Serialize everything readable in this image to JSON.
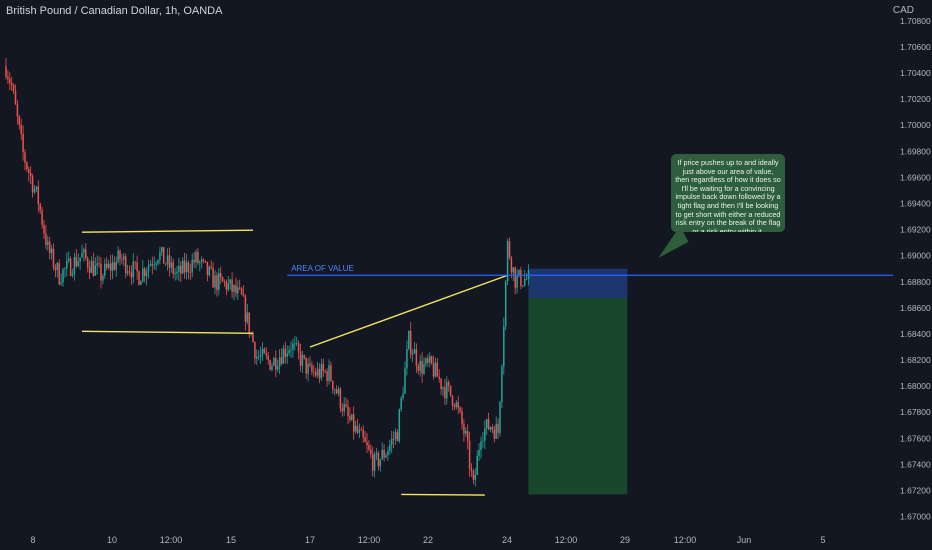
{
  "header": {
    "title": "British Pound / Canadian Dollar, 1h, OANDA",
    "currency": "CAD"
  },
  "annotation": {
    "text": "If price pushes up to and ideally just above our area of value, then regardless of how it does so I'll be waiting for a convincing impulse back down followed by a tight flag and then I'll be looking to get short with either a reduced risk entry on the break of the flag or a risk entry within it."
  },
  "colors": {
    "background": "#131722",
    "bull": "#26a69a",
    "bear": "#ef5350",
    "trendline": "#f5e663",
    "area_of_value": "#2962ff",
    "stop_zone": "#1e3a78",
    "target_zone": "#1b4d2e",
    "axis_text": "#b2b5be"
  },
  "chart_data": {
    "type": "candlestick",
    "title": "British Pound / Canadian Dollar, 1h, OANDA",
    "y_axis": {
      "label": "CAD",
      "ticks": [
        "1.70800",
        "1.70600",
        "1.70400",
        "1.70200",
        "1.70000",
        "1.69800",
        "1.69600",
        "1.69400",
        "1.69200",
        "1.69000",
        "1.68800",
        "1.68600",
        "1.68400",
        "1.68200",
        "1.68000",
        "1.67800",
        "1.67600",
        "1.67400",
        "1.67200",
        "1.67000"
      ],
      "range": [
        1.6692,
        1.7096
      ]
    },
    "x_axis": {
      "ticks": [
        "8",
        "10",
        "12:00",
        "15",
        "17",
        "12:00",
        "22",
        "24",
        "12:00",
        "29",
        "12:00",
        "Jun",
        "5"
      ]
    },
    "price_path": [
      [
        0,
        1.7045
      ],
      [
        3,
        1.703
      ],
      [
        9,
        1.6978
      ],
      [
        17,
        1.6942
      ],
      [
        22,
        1.6905
      ],
      [
        28,
        1.6885
      ],
      [
        40,
        1.69
      ],
      [
        50,
        1.6885
      ],
      [
        60,
        1.6898
      ],
      [
        70,
        1.6885
      ],
      [
        80,
        1.6902
      ],
      [
        90,
        1.6885
      ],
      [
        100,
        1.6897
      ],
      [
        110,
        1.688
      ],
      [
        116,
        1.6878
      ],
      [
        124,
        1.6867
      ],
      [
        132,
        1.6823
      ],
      [
        140,
        1.6818
      ],
      [
        150,
        1.6832
      ],
      [
        160,
        1.681
      ],
      [
        170,
        1.681
      ],
      [
        180,
        1.6775
      ],
      [
        188,
        1.6757
      ],
      [
        194,
        1.674
      ],
      [
        200,
        1.675
      ],
      [
        206,
        1.6765
      ],
      [
        212,
        1.6835
      ],
      [
        218,
        1.6815
      ],
      [
        224,
        1.6815
      ],
      [
        230,
        1.68
      ],
      [
        236,
        1.679
      ],
      [
        242,
        1.676
      ],
      [
        246,
        1.6722
      ],
      [
        250,
        1.6765
      ],
      [
        255,
        1.677
      ],
      [
        259,
        1.6765
      ],
      [
        264,
        1.6908
      ],
      [
        268,
        1.6882
      ],
      [
        275,
        1.6882
      ]
    ],
    "drawings": {
      "range_top": {
        "x": [
          40,
          130
        ],
        "y": [
          1.6918,
          1.69195
        ]
      },
      "range_bottom": {
        "x": [
          40,
          130
        ],
        "y": [
          1.6842,
          1.68405
        ]
      },
      "rising_trendline": {
        "x": [
          160,
          264
        ],
        "y": [
          1.683,
          1.6885
        ]
      },
      "low_line": {
        "x": [
          208,
          252
        ],
        "y": [
          1.6717,
          1.67165
        ]
      },
      "area_of_value": {
        "label": "AREA OF VALUE",
        "x_start": 148,
        "y": 1.6885
      },
      "stop_zone": {
        "x": [
          275,
          327
        ],
        "y": [
          1.68675,
          1.689
        ]
      },
      "target_zone": {
        "x": [
          275,
          327
        ],
        "y": [
          1.6717,
          1.68675
        ]
      }
    }
  }
}
